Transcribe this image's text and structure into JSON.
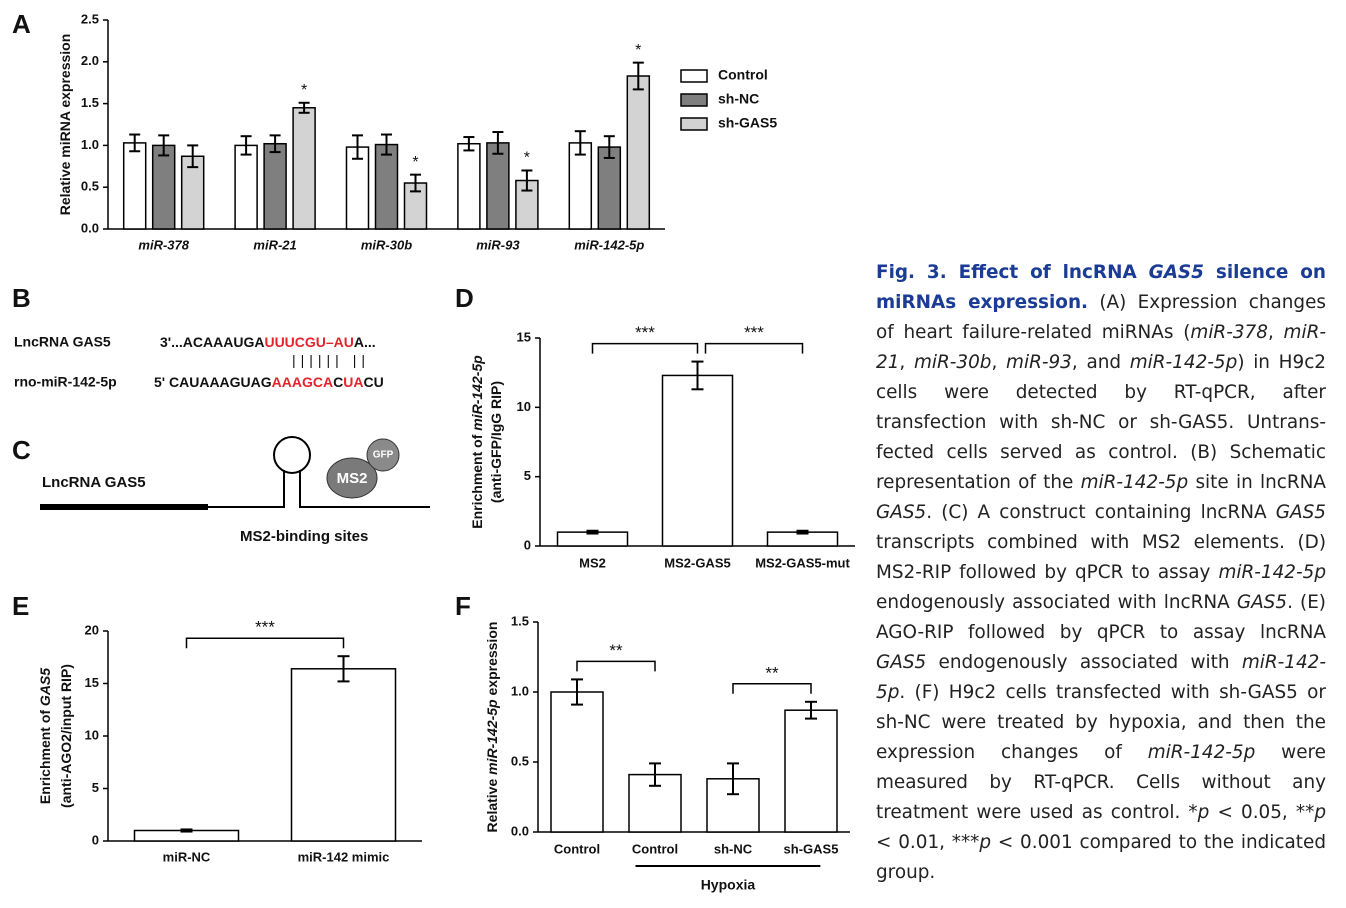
{
  "chart_data": [
    {
      "type": "bar",
      "panel": "A",
      "ylabel": [
        [
          {
            "text": "Relative miRNA expression"
          }
        ]
      ],
      "categories": [
        "miR-378",
        "miR-21",
        "miR-30b",
        "miR-93",
        "miR-142-5p"
      ],
      "italic_categories": true,
      "series": [
        {
          "name": "Control",
          "color": "#ffffff",
          "values": [
            1.03,
            1.0,
            0.98,
            1.02,
            1.03
          ],
          "errors": [
            0.1,
            0.11,
            0.14,
            0.08,
            0.14
          ]
        },
        {
          "name": "sh-NC",
          "color": "#7f7f7f",
          "values": [
            1.0,
            1.02,
            1.01,
            1.03,
            0.98
          ],
          "errors": [
            0.12,
            0.1,
            0.12,
            0.13,
            0.13
          ]
        },
        {
          "name": "sh-GAS5",
          "color": "#d3d3d3",
          "values": [
            0.87,
            1.45,
            0.55,
            0.58,
            1.83
          ],
          "errors": [
            0.13,
            0.06,
            0.1,
            0.12,
            0.16
          ],
          "significance": [
            null,
            "*",
            "*",
            "*",
            "*"
          ]
        }
      ],
      "ylim": [
        0,
        2.5
      ],
      "yticks": [
        {
          "value": 0,
          "label": "0.0"
        },
        {
          "value": 0.5,
          "label": "0.5"
        },
        {
          "value": 1,
          "label": "1.0"
        },
        {
          "value": 1.5,
          "label": "1.5"
        },
        {
          "value": 2,
          "label": "2.0"
        },
        {
          "value": 2.5,
          "label": "2.5"
        }
      ],
      "legend": "right"
    },
    {
      "type": "bar",
      "panel": "D",
      "ylabel": [
        [
          {
            "text": "Enrichment of "
          },
          {
            "text": "miR-142-5p",
            "italic": true
          }
        ],
        [
          {
            "text": "(anti-GFP/IgG RIP)"
          }
        ]
      ],
      "categories": [
        "MS2",
        "MS2-GAS5",
        "MS2-GAS5-mut"
      ],
      "color": "#ffffff",
      "values": [
        1.0,
        12.3,
        1.0
      ],
      "errors": [
        0.1,
        1.0,
        0.1
      ],
      "ylim": [
        0,
        15
      ],
      "yticks": [
        0,
        5,
        10,
        15
      ],
      "brackets": [
        {
          "from": 0,
          "to": 1,
          "label": "***"
        },
        {
          "from": 1,
          "to": 2,
          "label": "***"
        }
      ]
    },
    {
      "type": "bar",
      "panel": "E",
      "ylabel": [
        [
          {
            "text": "Enrichment of "
          },
          {
            "text": "GAS5",
            "italic": true
          }
        ],
        [
          {
            "text": "(anti-AGO2/input RIP)"
          }
        ]
      ],
      "categories": [
        "miR-NC",
        "miR-142 mimic"
      ],
      "color": "#ffffff",
      "values": [
        1.0,
        16.4
      ],
      "errors": [
        0.1,
        1.2
      ],
      "ylim": [
        0,
        20
      ],
      "yticks": [
        0,
        5,
        10,
        15,
        20
      ],
      "brackets": [
        {
          "from": 0,
          "to": 1,
          "label": "***"
        }
      ]
    },
    {
      "type": "bar",
      "panel": "F",
      "ylabel": [
        [
          {
            "text": "Relative "
          },
          {
            "text": "miR-142-5p",
            "italic": true
          },
          {
            "text": " expression"
          }
        ]
      ],
      "categories": [
        "Control",
        "Control",
        "sh-NC",
        "sh-GAS5"
      ],
      "color": "#ffffff",
      "values": [
        1.0,
        0.41,
        0.38,
        0.87
      ],
      "errors": [
        0.09,
        0.08,
        0.11,
        0.06
      ],
      "ylim": [
        0,
        1.5
      ],
      "yticks": [
        {
          "value": 0,
          "label": "0.0"
        },
        {
          "value": 0.5,
          "label": "0.5"
        },
        {
          "value": 1,
          "label": "1.0"
        },
        {
          "value": 1.5,
          "label": "1.5"
        }
      ],
      "brackets": [
        {
          "from": 0,
          "to": 1,
          "label": "**"
        },
        {
          "from": 2,
          "to": 3,
          "label": "**"
        }
      ],
      "group_label": {
        "text": "Hypoxia",
        "from": 1,
        "to": 3
      }
    }
  ],
  "panel_b": {
    "letter": "B",
    "highlight_color": "#e3242b",
    "rows": [
      {
        "label": "LncRNA GAS5",
        "segments": [
          {
            "text": "3'...ACAAAUGA"
          },
          {
            "text": "UUUCGU–AU",
            "highlight": true
          },
          {
            "text": "A..."
          }
        ]
      },
      {
        "segments": [
          {
            "text": "|||||| ||"
          }
        ]
      },
      {
        "label": "rno-miR-142-5p",
        "segments": [
          {
            "text": "5' CAUAAAGUAG"
          },
          {
            "text": "AAAGCA",
            "highlight": true
          },
          {
            "text": "C"
          },
          {
            "text": "UA",
            "highlight": true
          },
          {
            "text": "CU"
          }
        ]
      }
    ]
  },
  "panel_c": {
    "letter": "C",
    "label": "LncRNA GAS5",
    "protein": "MS2",
    "tag": "GFP",
    "caption": "MS2-binding sites"
  },
  "caption": {
    "title": [
      {
        "text": "Fig. 3. Effect of lncRNA "
      },
      {
        "text": "GAS5",
        "italic": true
      },
      {
        "text": " silence on miRNAs expression."
      }
    ],
    "body": [
      {
        "text": " (A) Expression changes of heart failure-related miRNAs ("
      },
      {
        "text": "miR-378",
        "italic": true
      },
      {
        "text": ", "
      },
      {
        "text": "miR-21",
        "italic": true
      },
      {
        "text": ", "
      },
      {
        "text": "miR-30b",
        "italic": true
      },
      {
        "text": ", "
      },
      {
        "text": "miR-93",
        "italic": true
      },
      {
        "text": ", and "
      },
      {
        "text": "miR-142-5p",
        "italic": true
      },
      {
        "text": ") in H9c2 cells were detected by RT-qPCR, after transfection with sh-NC or sh-GAS5. Untrans-fected cells served as control. (B) Schematic representation of the "
      },
      {
        "text": "miR-142-5p",
        "italic": true
      },
      {
        "text": " site in lncRNA "
      },
      {
        "text": "GAS5",
        "italic": true
      },
      {
        "text": ". (C) A construct containing lncRNA "
      },
      {
        "text": "GAS5",
        "italic": true
      },
      {
        "text": " transcripts combined with MS2 elements. (D) MS2-RIP followed by qPCR to assay "
      },
      {
        "text": "miR-142-5p",
        "italic": true
      },
      {
        "text": " endogenously associated with lncRNA "
      },
      {
        "text": "GAS5",
        "italic": true
      },
      {
        "text": ". (E) AGO-RIP followed by qPCR to assay lncRNA "
      },
      {
        "text": "GAS5",
        "italic": true
      },
      {
        "text": " endogenously associated with "
      },
      {
        "text": "miR-142-5p",
        "italic": true
      },
      {
        "text": ". (F) H9c2 cells transfected with sh-GAS5 or sh-NC were treated by hypoxia, and then the expression changes of "
      },
      {
        "text": "miR-142-5p",
        "italic": true
      },
      {
        "text": " were measured by RT-qPCR. Cells without any treatment were used as control. *"
      },
      {
        "text": "p",
        "italic": true
      },
      {
        "text": " < 0.05, **"
      },
      {
        "text": "p",
        "italic": true
      },
      {
        "text": " < 0.01, ***"
      },
      {
        "text": "p",
        "italic": true
      },
      {
        "text": " < 0.001 compared to the indicated group."
      }
    ]
  }
}
